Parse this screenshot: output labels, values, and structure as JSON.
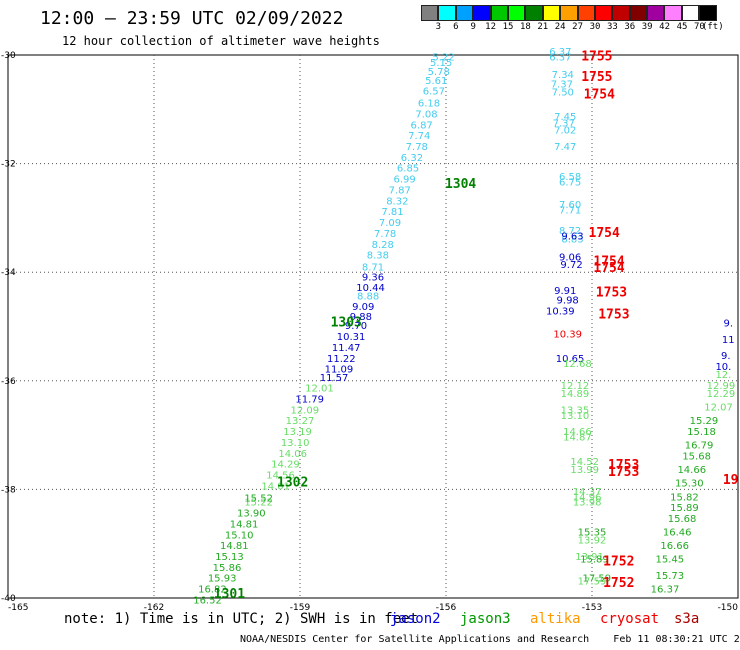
{
  "header": {
    "title": "12:00 – 23:59 UTC 02/09/2022",
    "subtitle": "12 hour collection of altimeter wave heights"
  },
  "colorbar": {
    "colors": [
      "#808080",
      "#00ffff",
      "#00a0ff",
      "#0000ff",
      "#00c800",
      "#00ff00",
      "#008000",
      "#ffff00",
      "#ffa000",
      "#ff4000",
      "#ff0000",
      "#c00000",
      "#800000",
      "#a000a0",
      "#ff80ff",
      "#ffffff",
      "#000000"
    ],
    "labels": [
      "3",
      "6",
      "9",
      "12",
      "15",
      "18",
      "21",
      "24",
      "27",
      "30",
      "33",
      "36",
      "39",
      "42",
      "45",
      "70",
      "(ft)"
    ]
  },
  "axes": {
    "lat_labels": [
      "-30",
      "-32",
      "-34",
      "-36",
      "-38",
      "-40"
    ],
    "lon_labels": [
      "-165",
      "-162",
      "-159",
      "-156",
      "-153",
      "-150"
    ]
  },
  "chart_data": {
    "type": "scatter",
    "x_range": [
      -165,
      -150
    ],
    "y_range": [
      -40,
      -30
    ],
    "tracks": [
      {
        "color": "#44ccee",
        "points": [
          [
            -156.05,
            -30.1,
            "5.22"
          ],
          [
            -156.1,
            -30.2,
            "5.15"
          ],
          [
            -156.15,
            -30.37,
            "5.78"
          ],
          [
            -156.2,
            -30.53,
            "5.61"
          ],
          [
            -156.25,
            -30.73,
            "6.57"
          ],
          [
            -156.35,
            -30.95,
            "6.18"
          ],
          [
            -156.4,
            -31.15,
            "7.08"
          ],
          [
            -156.5,
            -31.35,
            "6.87"
          ],
          [
            -156.55,
            -31.55,
            "7.74"
          ],
          [
            -156.6,
            -31.75,
            "7.78"
          ],
          [
            -156.7,
            -31.95,
            "6.32"
          ],
          [
            -156.78,
            -32.15,
            "6.85"
          ],
          [
            -156.85,
            -32.35,
            "6.99"
          ],
          [
            -156.95,
            -32.55,
            "7.87"
          ],
          [
            -157.0,
            -32.75,
            "8.32"
          ],
          [
            -157.1,
            -32.95,
            "7.81"
          ],
          [
            -157.15,
            -33.15,
            "7.09"
          ],
          [
            -157.25,
            -33.35,
            "7.78"
          ],
          [
            -157.3,
            -33.55,
            "8.28"
          ],
          [
            -157.4,
            -33.75,
            "8.38"
          ],
          [
            -157.5,
            -33.97,
            "8.71"
          ],
          [
            -157.6,
            -34.5,
            "8.88"
          ],
          [
            -153.65,
            -30.0,
            "6.37"
          ],
          [
            -153.65,
            -30.1,
            "6.37"
          ],
          [
            -153.6,
            -30.42,
            "7.34"
          ],
          [
            -153.62,
            -30.6,
            "7.37"
          ],
          [
            -153.6,
            -30.75,
            "7.50"
          ],
          [
            -153.55,
            -31.2,
            "7.45"
          ],
          [
            -153.58,
            -31.32,
            "7.37"
          ],
          [
            -153.55,
            -31.45,
            "7.02"
          ],
          [
            -153.55,
            -31.75,
            "7.47"
          ],
          [
            -153.45,
            -32.3,
            "6.58"
          ],
          [
            -153.45,
            -32.4,
            "6.75"
          ],
          [
            -153.45,
            -32.82,
            "7.60"
          ],
          [
            -153.45,
            -32.92,
            "7.71"
          ],
          [
            -153.45,
            -33.3,
            "8.72"
          ],
          [
            -153.4,
            -33.45,
            "8.83"
          ]
        ]
      },
      {
        "color": "#0000cc",
        "points": [
          [
            -157.5,
            -34.15,
            "9.36"
          ],
          [
            -157.55,
            -34.35,
            "10.44"
          ],
          [
            -157.7,
            -34.7,
            "9.09"
          ],
          [
            -157.75,
            -34.88,
            "9.88"
          ],
          [
            -157.85,
            -35.05,
            "9.70"
          ],
          [
            -157.95,
            -35.25,
            "10.31"
          ],
          [
            -158.05,
            -35.45,
            "11.47"
          ],
          [
            -158.15,
            -35.65,
            "11.22"
          ],
          [
            -158.2,
            -35.85,
            "11.09"
          ],
          [
            -158.3,
            -36.0,
            "11.57"
          ],
          [
            -158.8,
            -36.4,
            "11.79"
          ],
          [
            -153.4,
            -33.4,
            "9.63"
          ],
          [
            -153.45,
            -33.78,
            "9.06"
          ],
          [
            -153.42,
            -33.92,
            "9.72"
          ],
          [
            -153.55,
            -34.4,
            "9.91"
          ],
          [
            -153.5,
            -34.58,
            "9.98"
          ],
          [
            -153.65,
            -34.78,
            "10.39"
          ],
          [
            -153.45,
            -35.65,
            "10.65"
          ],
          [
            -150.2,
            -35.0,
            "9."
          ],
          [
            -150.2,
            -35.3,
            "11"
          ],
          [
            -150.25,
            -35.6,
            "9."
          ],
          [
            -150.3,
            -35.8,
            "10."
          ]
        ]
      },
      {
        "color": "#66dd66",
        "points": [
          [
            -158.6,
            -36.2,
            "12.01"
          ],
          [
            -158.9,
            -36.6,
            "12.09"
          ],
          [
            -159.0,
            -36.8,
            "13.27"
          ],
          [
            -159.05,
            -37.0,
            "13.19"
          ],
          [
            -159.1,
            -37.2,
            "13.10"
          ],
          [
            -159.15,
            -37.4,
            "14.06"
          ],
          [
            -159.3,
            -37.6,
            "14.29"
          ],
          [
            -159.4,
            -37.8,
            "14.56"
          ],
          [
            -159.5,
            -38.0,
            "14.01"
          ],
          [
            -159.85,
            -38.3,
            "15.22"
          ],
          [
            -153.3,
            -35.75,
            "12.68"
          ],
          [
            -153.35,
            -36.15,
            "12.12"
          ],
          [
            -153.35,
            -36.3,
            "14.89"
          ],
          [
            -153.35,
            -36.6,
            "13.35"
          ],
          [
            -153.35,
            -36.7,
            "13.10"
          ],
          [
            -153.3,
            -37.0,
            "14.66"
          ],
          [
            -153.3,
            -37.1,
            "14.87"
          ],
          [
            -153.15,
            -37.55,
            "14.52"
          ],
          [
            -153.15,
            -37.7,
            "13.99"
          ],
          [
            -153.1,
            -38.1,
            "14.37"
          ],
          [
            -153.1,
            -38.2,
            "14.96"
          ],
          [
            -153.1,
            -38.3,
            "13.98"
          ],
          [
            -153.0,
            -39.0,
            "13.92"
          ],
          [
            -153.05,
            -39.3,
            "13.91"
          ],
          [
            -153.0,
            -39.75,
            "17.59"
          ],
          [
            -150.3,
            -35.95,
            "12."
          ],
          [
            -150.35,
            -36.15,
            "12.99"
          ],
          [
            -150.35,
            -36.3,
            "12.29"
          ],
          [
            -150.4,
            -36.55,
            "12.07"
          ]
        ]
      },
      {
        "color": "#22aa22",
        "points": [
          [
            -159.85,
            -38.22,
            "15.52"
          ],
          [
            -160.0,
            -38.5,
            "13.90"
          ],
          [
            -160.15,
            -38.7,
            "14.81"
          ],
          [
            -160.25,
            -38.9,
            "15.10"
          ],
          [
            -160.35,
            -39.1,
            "14.81"
          ],
          [
            -160.45,
            -39.3,
            "15.13"
          ],
          [
            -160.5,
            -39.5,
            "15.86"
          ],
          [
            -160.6,
            -39.7,
            "15.93"
          ],
          [
            -160.8,
            -39.9,
            "16.82"
          ],
          [
            -160.9,
            -40.1,
            "16.52"
          ],
          [
            -153.0,
            -38.85,
            "15.35"
          ],
          [
            -152.95,
            -39.35,
            "15.89"
          ],
          [
            -152.9,
            -39.7,
            "17.59"
          ],
          [
            -150.7,
            -36.8,
            "15.29"
          ],
          [
            -150.75,
            -37.0,
            "15.18"
          ],
          [
            -150.8,
            -37.25,
            "16.79"
          ],
          [
            -150.85,
            -37.45,
            "15.68"
          ],
          [
            -150.95,
            -37.7,
            "14.66"
          ],
          [
            -151.0,
            -37.95,
            "15.30"
          ],
          [
            -151.1,
            -38.2,
            "15.82"
          ],
          [
            -151.1,
            -38.4,
            "15.89"
          ],
          [
            -151.15,
            -38.6,
            "15.68"
          ],
          [
            -151.25,
            -38.85,
            "16.46"
          ],
          [
            -151.3,
            -39.1,
            "16.66"
          ],
          [
            -151.4,
            -39.35,
            "15.45"
          ],
          [
            -151.4,
            -39.65,
            "15.73"
          ],
          [
            -151.5,
            -39.9,
            "16.37"
          ]
        ]
      },
      {
        "color": "#ee0000",
        "points": [
          [
            -153.5,
            -35.2,
            "10.39"
          ]
        ]
      }
    ],
    "time_labels": [
      {
        "x": -155.7,
        "y": -32.45,
        "text": "1304",
        "color": "#008000"
      },
      {
        "x": -158.05,
        "y": -35.0,
        "text": "1303",
        "color": "#008000"
      },
      {
        "x": -159.15,
        "y": -37.95,
        "text": "1302",
        "color": "#008000"
      },
      {
        "x": -160.45,
        "y": -40.0,
        "text": "1301",
        "color": "#008000"
      },
      {
        "x": -152.9,
        "y": -30.1,
        "text": "1755",
        "color": "#ee0000"
      },
      {
        "x": -152.9,
        "y": -30.48,
        "text": "1755",
        "color": "#ee0000"
      },
      {
        "x": -152.85,
        "y": -30.8,
        "text": "1754",
        "color": "#ee0000"
      },
      {
        "x": -152.75,
        "y": -33.35,
        "text": "1754",
        "color": "#ee0000"
      },
      {
        "x": -152.65,
        "y": -33.88,
        "text": "1754",
        "color": "#ee0000"
      },
      {
        "x": -152.65,
        "y": -34.0,
        "text": "1754",
        "color": "#ee0000"
      },
      {
        "x": -152.6,
        "y": -34.45,
        "text": "1753",
        "color": "#ee0000"
      },
      {
        "x": -152.55,
        "y": -34.85,
        "text": "1753",
        "color": "#ee0000"
      },
      {
        "x": -152.35,
        "y": -37.62,
        "text": "1753",
        "color": "#ee0000"
      },
      {
        "x": -152.35,
        "y": -37.75,
        "text": "1753",
        "color": "#ee0000"
      },
      {
        "x": -152.45,
        "y": -39.4,
        "text": "1752",
        "color": "#ee0000"
      },
      {
        "x": -152.45,
        "y": -39.8,
        "text": "1752",
        "color": "#ee0000"
      },
      {
        "x": -150.15,
        "y": -37.9,
        "text": "19",
        "color": "#ee0000"
      }
    ]
  },
  "legend_note": {
    "note": "note: 1) Time is in UTC; 2) SWH is in feet",
    "sats": [
      {
        "name": "jason2",
        "color": "#0000dd"
      },
      {
        "name": "jason3",
        "color": "#009900"
      },
      {
        "name": "altika",
        "color": "#ff9900"
      },
      {
        "name": "cryosat",
        "color": "#ee0000"
      },
      {
        "name": "s3a",
        "color": "#aa0000"
      }
    ]
  },
  "footer": {
    "credit": "NOAA/NESDIS Center for Satellite Applications and Research",
    "timestamp": "Feb 11 08:30:21 UTC 2022"
  }
}
